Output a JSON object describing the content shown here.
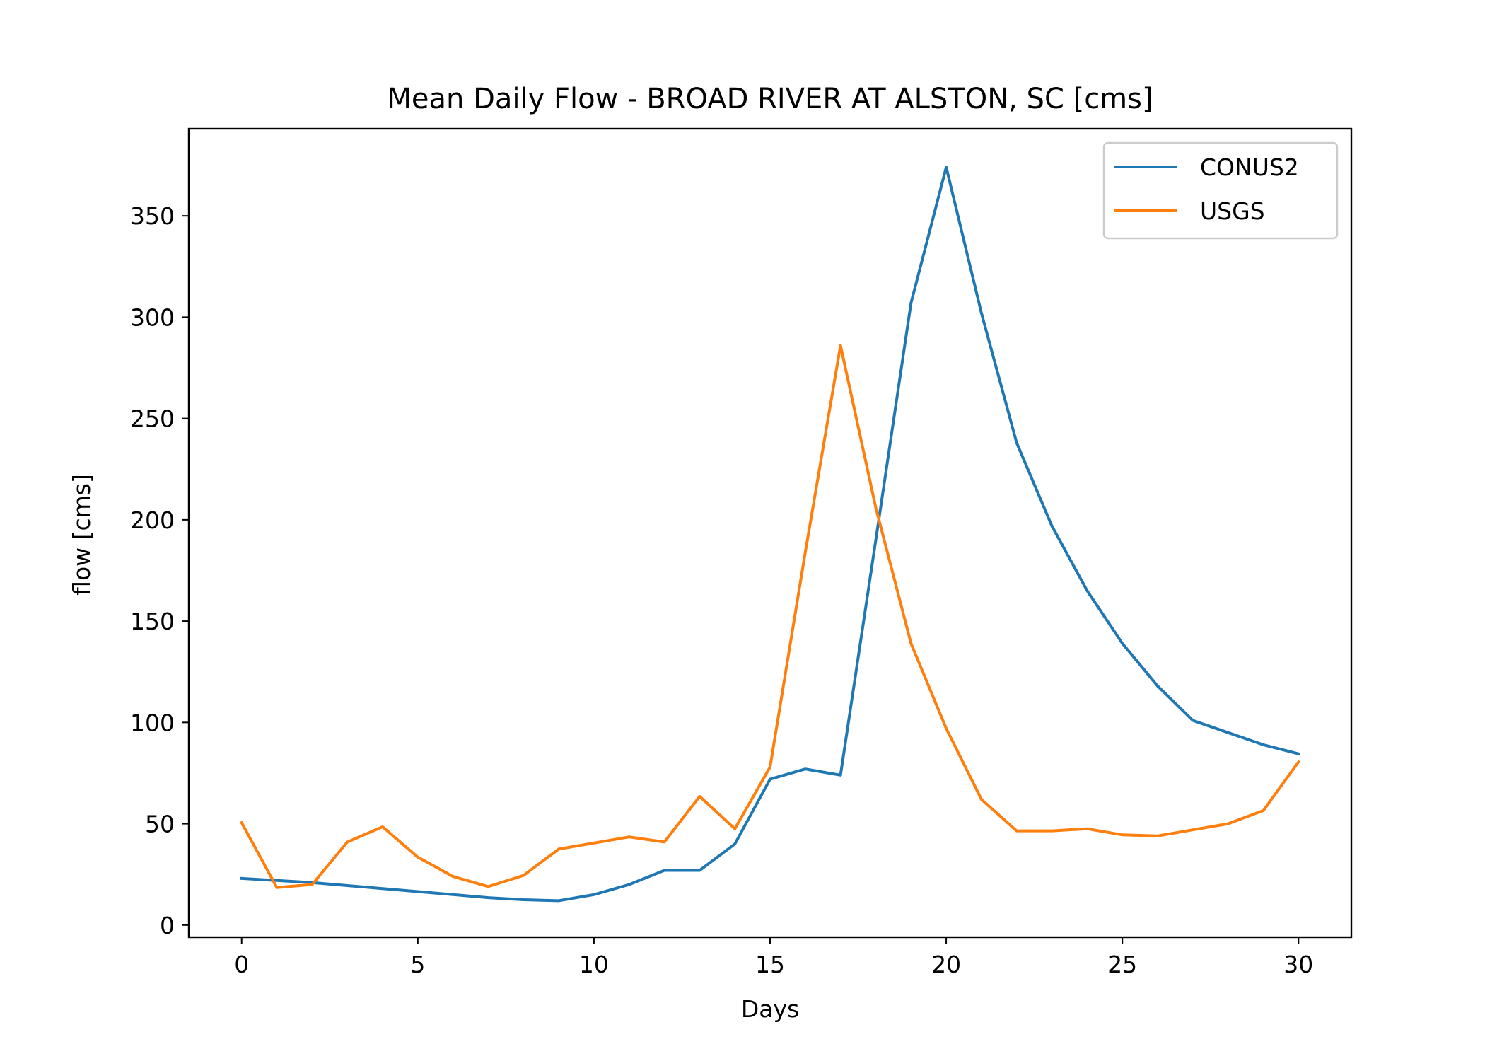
{
  "chart_data": {
    "type": "line",
    "title": "Mean Daily Flow - BROAD RIVER AT ALSTON, SC [cms]",
    "xlabel": "Days",
    "ylabel": "flow [cms]",
    "xlim": [
      -1.5,
      31.5
    ],
    "ylim": [
      -6,
      393
    ],
    "xticks": [
      0,
      5,
      10,
      15,
      20,
      25,
      30
    ],
    "yticks": [
      0,
      50,
      100,
      150,
      200,
      250,
      300,
      350
    ],
    "grid": false,
    "legend": "upper right",
    "x": [
      0,
      1,
      2,
      3,
      4,
      5,
      6,
      7,
      8,
      9,
      10,
      11,
      12,
      13,
      14,
      15,
      16,
      17,
      18,
      19,
      20,
      21,
      22,
      23,
      24,
      25,
      26,
      27,
      28,
      29,
      30
    ],
    "series": [
      {
        "name": "CONUS2",
        "color": "#1f77b4",
        "values": [
          23,
          22,
          21,
          19.5,
          18,
          16.5,
          15,
          13.5,
          12.5,
          12,
          15,
          20,
          27,
          27,
          40,
          72,
          77,
          74,
          190,
          307,
          374,
          302,
          238,
          197,
          165,
          139,
          118,
          101,
          95,
          89,
          84.5
        ]
      },
      {
        "name": "USGS",
        "color": "#ff7f0e",
        "values": [
          50.5,
          18.5,
          20,
          41,
          48.5,
          33.5,
          24,
          19,
          24.5,
          37.5,
          40.5,
          43.5,
          41,
          63.5,
          47.5,
          78,
          184,
          286,
          206,
          139,
          97,
          62,
          46.5,
          46.5,
          47.5,
          44.5,
          44,
          47,
          50,
          56.5,
          80.5
        ]
      }
    ]
  }
}
